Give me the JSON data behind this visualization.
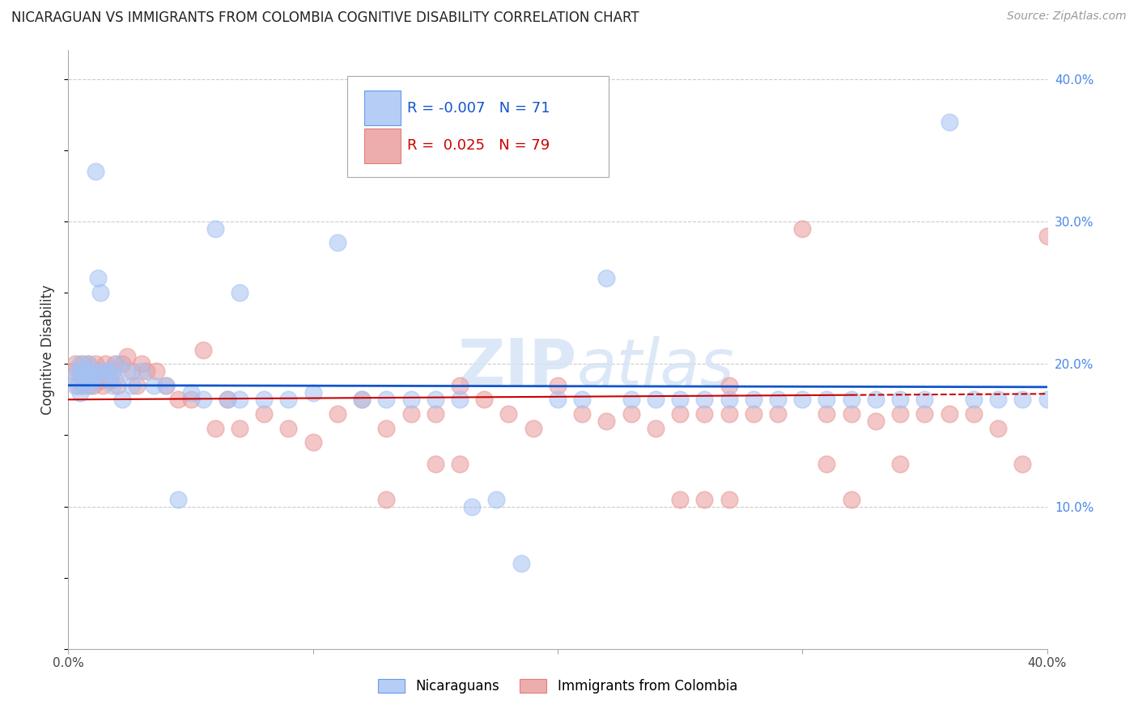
{
  "title": "NICARAGUAN VS IMMIGRANTS FROM COLOMBIA COGNITIVE DISABILITY CORRELATION CHART",
  "source": "Source: ZipAtlas.com",
  "ylabel": "Cognitive Disability",
  "xlim": [
    0.0,
    0.4
  ],
  "ylim": [
    0.0,
    0.42
  ],
  "blue_color": "#a4c2f4",
  "pink_color": "#ea9999",
  "blue_line_color": "#1155cc",
  "pink_line_color": "#cc0000",
  "legend_R_blue": "-0.007",
  "legend_N_blue": "71",
  "legend_R_pink": "0.025",
  "legend_N_pink": "79",
  "blue_intercept": 0.185,
  "blue_slope": -0.003,
  "pink_intercept": 0.175,
  "pink_slope": 0.01,
  "blue_x": [
    0.002,
    0.003,
    0.004,
    0.005,
    0.005,
    0.006,
    0.006,
    0.007,
    0.007,
    0.008,
    0.008,
    0.009,
    0.009,
    0.01,
    0.01,
    0.011,
    0.012,
    0.013,
    0.014,
    0.015,
    0.016,
    0.017,
    0.018,
    0.019,
    0.02,
    0.022,
    0.024,
    0.026,
    0.03,
    0.035,
    0.04,
    0.045,
    0.05,
    0.055,
    0.06,
    0.065,
    0.07,
    0.08,
    0.09,
    0.1,
    0.11,
    0.12,
    0.13,
    0.14,
    0.15,
    0.16,
    0.165,
    0.175,
    0.185,
    0.2,
    0.21,
    0.22,
    0.23,
    0.24,
    0.25,
    0.26,
    0.27,
    0.28,
    0.29,
    0.3,
    0.31,
    0.32,
    0.33,
    0.34,
    0.35,
    0.36,
    0.37,
    0.38,
    0.39,
    0.07,
    0.4
  ],
  "blue_y": [
    0.19,
    0.185,
    0.195,
    0.18,
    0.2,
    0.185,
    0.195,
    0.188,
    0.192,
    0.195,
    0.2,
    0.185,
    0.188,
    0.195,
    0.19,
    0.335,
    0.26,
    0.25,
    0.195,
    0.195,
    0.19,
    0.195,
    0.185,
    0.19,
    0.2,
    0.175,
    0.195,
    0.185,
    0.195,
    0.185,
    0.185,
    0.105,
    0.18,
    0.175,
    0.295,
    0.175,
    0.175,
    0.175,
    0.175,
    0.18,
    0.285,
    0.175,
    0.175,
    0.175,
    0.175,
    0.175,
    0.1,
    0.105,
    0.06,
    0.175,
    0.175,
    0.26,
    0.175,
    0.175,
    0.175,
    0.175,
    0.175,
    0.175,
    0.175,
    0.175,
    0.175,
    0.175,
    0.175,
    0.175,
    0.175,
    0.37,
    0.175,
    0.175,
    0.175,
    0.25,
    0.175
  ],
  "pink_x": [
    0.002,
    0.003,
    0.004,
    0.005,
    0.006,
    0.006,
    0.007,
    0.007,
    0.008,
    0.008,
    0.009,
    0.01,
    0.011,
    0.012,
    0.013,
    0.014,
    0.015,
    0.016,
    0.017,
    0.018,
    0.019,
    0.02,
    0.022,
    0.024,
    0.026,
    0.028,
    0.03,
    0.032,
    0.036,
    0.04,
    0.045,
    0.05,
    0.055,
    0.06,
    0.065,
    0.07,
    0.08,
    0.09,
    0.1,
    0.11,
    0.12,
    0.13,
    0.14,
    0.15,
    0.16,
    0.17,
    0.18,
    0.19,
    0.2,
    0.21,
    0.22,
    0.23,
    0.24,
    0.25,
    0.26,
    0.27,
    0.28,
    0.29,
    0.3,
    0.31,
    0.32,
    0.33,
    0.34,
    0.35,
    0.36,
    0.37,
    0.38,
    0.39,
    0.4,
    0.27,
    0.15,
    0.16,
    0.13,
    0.34,
    0.31,
    0.32,
    0.25,
    0.26,
    0.27
  ],
  "pink_y": [
    0.195,
    0.2,
    0.185,
    0.192,
    0.2,
    0.185,
    0.188,
    0.195,
    0.185,
    0.2,
    0.192,
    0.185,
    0.2,
    0.195,
    0.188,
    0.185,
    0.2,
    0.195,
    0.188,
    0.195,
    0.2,
    0.185,
    0.2,
    0.205,
    0.195,
    0.185,
    0.2,
    0.195,
    0.195,
    0.185,
    0.175,
    0.175,
    0.21,
    0.155,
    0.175,
    0.155,
    0.165,
    0.155,
    0.145,
    0.165,
    0.175,
    0.155,
    0.165,
    0.165,
    0.185,
    0.175,
    0.165,
    0.155,
    0.185,
    0.165,
    0.16,
    0.165,
    0.155,
    0.165,
    0.165,
    0.165,
    0.165,
    0.165,
    0.295,
    0.165,
    0.165,
    0.16,
    0.165,
    0.165,
    0.165,
    0.165,
    0.155,
    0.13,
    0.29,
    0.185,
    0.13,
    0.13,
    0.105,
    0.13,
    0.13,
    0.105,
    0.105,
    0.105,
    0.105
  ]
}
